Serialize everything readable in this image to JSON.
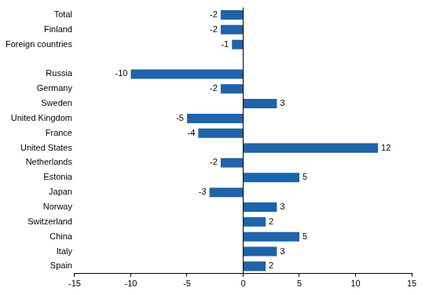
{
  "chart_data": {
    "type": "bar",
    "orientation": "horizontal",
    "categories": [
      "Total",
      "Finland",
      "Foreign countries",
      null,
      "Russia",
      "Germany",
      "Sweden",
      "United Kingdom",
      "France",
      "United States",
      "Netherlands",
      "Estonia",
      "Japan",
      "Norway",
      "Switzerland",
      "China",
      "Italy",
      "Spain"
    ],
    "values": [
      -2,
      -2,
      -1,
      null,
      -10,
      -2,
      3,
      -5,
      -4,
      12,
      -2,
      5,
      -3,
      3,
      2,
      5,
      3,
      2
    ],
    "color": "#1f63a8",
    "xlim": [
      -15,
      15
    ],
    "xticks": [
      -15,
      -10,
      -5,
      0,
      5,
      10,
      15
    ],
    "grid": false,
    "data_labels": true
  }
}
